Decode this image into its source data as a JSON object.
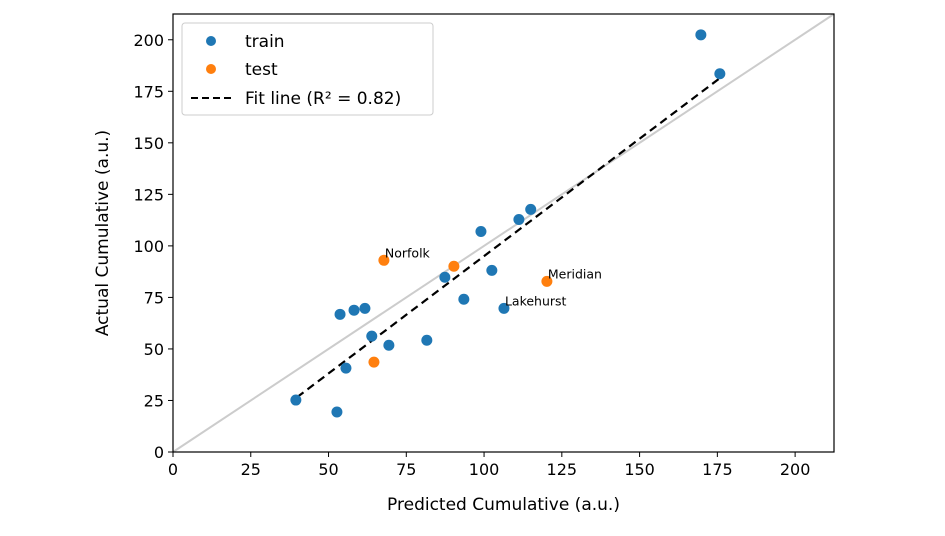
{
  "chart_data": {
    "type": "scatter",
    "title": "",
    "xlabel": "Predicted Cumulative (a.u.)",
    "ylabel": "Actual Cumulative (a.u.)",
    "xlim": [
      0,
      212.5
    ],
    "ylim": [
      0,
      212.5
    ],
    "xticks": [
      0,
      25,
      50,
      75,
      100,
      125,
      150,
      175,
      200
    ],
    "yticks": [
      0,
      25,
      50,
      75,
      100,
      125,
      150,
      175,
      200
    ],
    "grid": false,
    "legend": {
      "placement": "top-left",
      "entries": [
        "train",
        "test",
        "Fit line (R² = 0.82)"
      ]
    },
    "colors": {
      "train": "#1f77b4",
      "test": "#ff7f0e",
      "fit": "#000000",
      "identity": "#cccccc"
    },
    "series": [
      {
        "name": "train",
        "kind": "points",
        "points": [
          {
            "x": 39.5,
            "y": 25.2
          },
          {
            "x": 52.7,
            "y": 19.4
          },
          {
            "x": 53.7,
            "y": 66.8
          },
          {
            "x": 58.2,
            "y": 68.8
          },
          {
            "x": 61.7,
            "y": 69.7
          },
          {
            "x": 63.9,
            "y": 56.2
          },
          {
            "x": 55.6,
            "y": 40.7
          },
          {
            "x": 69.4,
            "y": 51.8
          },
          {
            "x": 81.6,
            "y": 54.2
          },
          {
            "x": 87.4,
            "y": 84.8
          },
          {
            "x": 93.5,
            "y": 74.1
          },
          {
            "x": 99.0,
            "y": 107.0
          },
          {
            "x": 102.5,
            "y": 88.1
          },
          {
            "x": 106.4,
            "y": 69.7,
            "label": "Lakehurst"
          },
          {
            "x": 111.2,
            "y": 112.8
          },
          {
            "x": 115.0,
            "y": 117.7
          },
          {
            "x": 169.7,
            "y": 202.4
          },
          {
            "x": 175.8,
            "y": 183.5
          }
        ]
      },
      {
        "name": "test",
        "kind": "points",
        "points": [
          {
            "x": 67.8,
            "y": 93.0,
            "label": "Norfolk"
          },
          {
            "x": 90.3,
            "y": 90.1
          },
          {
            "x": 120.2,
            "y": 82.8,
            "label": "Meridian"
          },
          {
            "x": 64.6,
            "y": 43.6
          }
        ]
      },
      {
        "name": "Fit line (R² = 0.82)",
        "kind": "line",
        "style": "dashed",
        "points": [
          {
            "x": 39.9,
            "y": 26.6
          },
          {
            "x": 176.0,
            "y": 181.6
          }
        ]
      },
      {
        "kind": "identity-line",
        "points": [
          {
            "x": 0,
            "y": 0
          },
          {
            "x": 212.5,
            "y": 212.5
          }
        ]
      }
    ]
  }
}
